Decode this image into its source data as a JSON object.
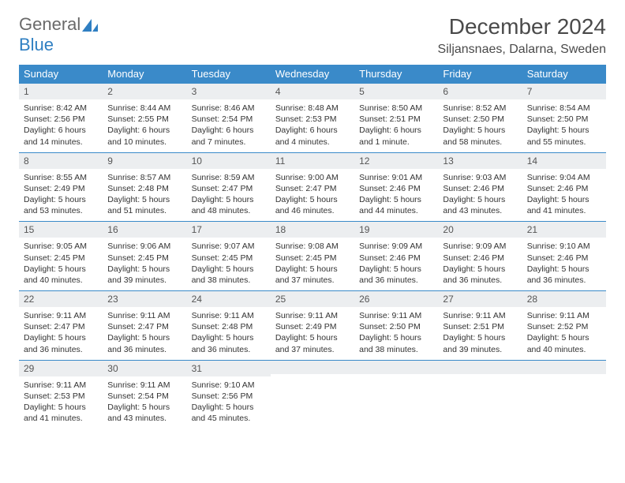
{
  "logo": {
    "part1": "General",
    "part2": "Blue",
    "color1": "#6a6a6a",
    "color2": "#2f7fc2"
  },
  "title": "December 2024",
  "location": "Siljansnaes, Dalarna, Sweden",
  "header_bg": "#3a8ac9",
  "header_fg": "#ffffff",
  "daynum_bg": "#eceef0",
  "border_color": "#3a8ac9",
  "weekdays": [
    "Sunday",
    "Monday",
    "Tuesday",
    "Wednesday",
    "Thursday",
    "Friday",
    "Saturday"
  ],
  "weeks": [
    [
      {
        "n": "1",
        "sr": "8:42 AM",
        "ss": "2:56 PM",
        "dl": "6 hours and 14 minutes."
      },
      {
        "n": "2",
        "sr": "8:44 AM",
        "ss": "2:55 PM",
        "dl": "6 hours and 10 minutes."
      },
      {
        "n": "3",
        "sr": "8:46 AM",
        "ss": "2:54 PM",
        "dl": "6 hours and 7 minutes."
      },
      {
        "n": "4",
        "sr": "8:48 AM",
        "ss": "2:53 PM",
        "dl": "6 hours and 4 minutes."
      },
      {
        "n": "5",
        "sr": "8:50 AM",
        "ss": "2:51 PM",
        "dl": "6 hours and 1 minute."
      },
      {
        "n": "6",
        "sr": "8:52 AM",
        "ss": "2:50 PM",
        "dl": "5 hours and 58 minutes."
      },
      {
        "n": "7",
        "sr": "8:54 AM",
        "ss": "2:50 PM",
        "dl": "5 hours and 55 minutes."
      }
    ],
    [
      {
        "n": "8",
        "sr": "8:55 AM",
        "ss": "2:49 PM",
        "dl": "5 hours and 53 minutes."
      },
      {
        "n": "9",
        "sr": "8:57 AM",
        "ss": "2:48 PM",
        "dl": "5 hours and 51 minutes."
      },
      {
        "n": "10",
        "sr": "8:59 AM",
        "ss": "2:47 PM",
        "dl": "5 hours and 48 minutes."
      },
      {
        "n": "11",
        "sr": "9:00 AM",
        "ss": "2:47 PM",
        "dl": "5 hours and 46 minutes."
      },
      {
        "n": "12",
        "sr": "9:01 AM",
        "ss": "2:46 PM",
        "dl": "5 hours and 44 minutes."
      },
      {
        "n": "13",
        "sr": "9:03 AM",
        "ss": "2:46 PM",
        "dl": "5 hours and 43 minutes."
      },
      {
        "n": "14",
        "sr": "9:04 AM",
        "ss": "2:46 PM",
        "dl": "5 hours and 41 minutes."
      }
    ],
    [
      {
        "n": "15",
        "sr": "9:05 AM",
        "ss": "2:45 PM",
        "dl": "5 hours and 40 minutes."
      },
      {
        "n": "16",
        "sr": "9:06 AM",
        "ss": "2:45 PM",
        "dl": "5 hours and 39 minutes."
      },
      {
        "n": "17",
        "sr": "9:07 AM",
        "ss": "2:45 PM",
        "dl": "5 hours and 38 minutes."
      },
      {
        "n": "18",
        "sr": "9:08 AM",
        "ss": "2:45 PM",
        "dl": "5 hours and 37 minutes."
      },
      {
        "n": "19",
        "sr": "9:09 AM",
        "ss": "2:46 PM",
        "dl": "5 hours and 36 minutes."
      },
      {
        "n": "20",
        "sr": "9:09 AM",
        "ss": "2:46 PM",
        "dl": "5 hours and 36 minutes."
      },
      {
        "n": "21",
        "sr": "9:10 AM",
        "ss": "2:46 PM",
        "dl": "5 hours and 36 minutes."
      }
    ],
    [
      {
        "n": "22",
        "sr": "9:11 AM",
        "ss": "2:47 PM",
        "dl": "5 hours and 36 minutes."
      },
      {
        "n": "23",
        "sr": "9:11 AM",
        "ss": "2:47 PM",
        "dl": "5 hours and 36 minutes."
      },
      {
        "n": "24",
        "sr": "9:11 AM",
        "ss": "2:48 PM",
        "dl": "5 hours and 36 minutes."
      },
      {
        "n": "25",
        "sr": "9:11 AM",
        "ss": "2:49 PM",
        "dl": "5 hours and 37 minutes."
      },
      {
        "n": "26",
        "sr": "9:11 AM",
        "ss": "2:50 PM",
        "dl": "5 hours and 38 minutes."
      },
      {
        "n": "27",
        "sr": "9:11 AM",
        "ss": "2:51 PM",
        "dl": "5 hours and 39 minutes."
      },
      {
        "n": "28",
        "sr": "9:11 AM",
        "ss": "2:52 PM",
        "dl": "5 hours and 40 minutes."
      }
    ],
    [
      {
        "n": "29",
        "sr": "9:11 AM",
        "ss": "2:53 PM",
        "dl": "5 hours and 41 minutes."
      },
      {
        "n": "30",
        "sr": "9:11 AM",
        "ss": "2:54 PM",
        "dl": "5 hours and 43 minutes."
      },
      {
        "n": "31",
        "sr": "9:10 AM",
        "ss": "2:56 PM",
        "dl": "5 hours and 45 minutes."
      },
      null,
      null,
      null,
      null
    ]
  ],
  "labels": {
    "sunrise": "Sunrise:",
    "sunset": "Sunset:",
    "daylight": "Daylight:"
  }
}
